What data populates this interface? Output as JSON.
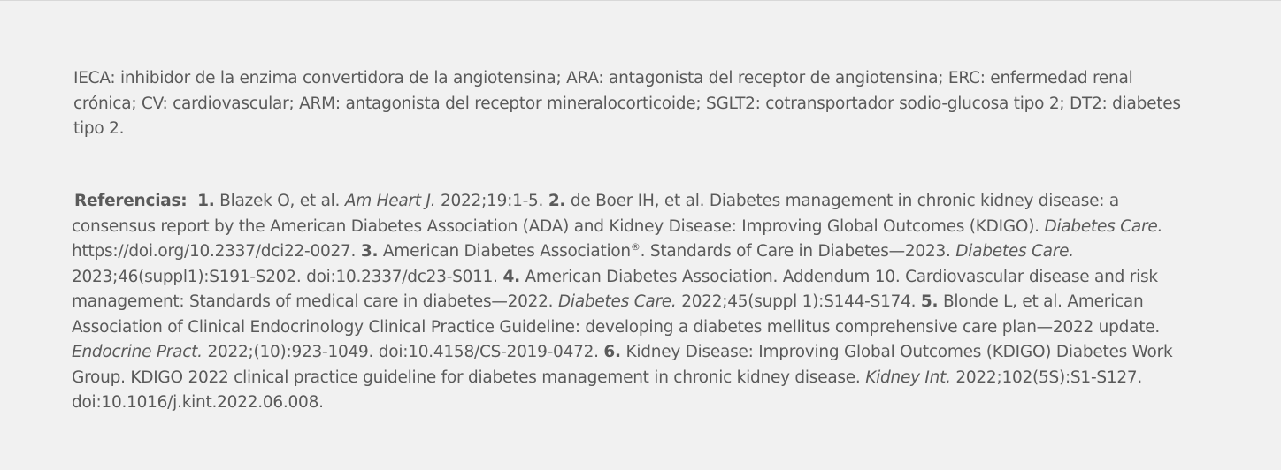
{
  "abbreviations": "IECA: inhibidor de la enzima convertidora de la angiotensina; ARA: antagonista del receptor de angiotensina; ERC: enfermedad renal crónica; CV: cardiovascular; ARM: antagonista del receptor mineralocorticoide; SGLT2: cotransportador sodio-glucosa tipo 2; DT2: diabetes tipo 2.",
  "references": {
    "heading": "Referencias:",
    "items": [
      {
        "num": "1.",
        "pre": "Blazek O, et al.",
        "journal": "Am Heart J.",
        "post": "2022;19:1-5."
      },
      {
        "num": "2.",
        "pre": "de Boer IH, et al. Diabetes management in chronic kidney disease: a consensus report by the American Diabetes Association (ADA) and Kidney Disease: Improving Global Outcomes (KDIGO).",
        "journal": "Diabetes Care.",
        "post": "https://doi.org/10.2337/dci22-0027."
      },
      {
        "num": "3.",
        "pre": "American Diabetes Association",
        "sup": "®",
        "pre2": ". Standards of Care in Diabetes—2023.",
        "journal": "Diabetes Care.",
        "post": "2023;46(suppl1):S191-S202. doi:10.2337/dc23-S011."
      },
      {
        "num": "4.",
        "pre": "American Diabetes Association. Addendum 10. Cardiovascular disease and risk management: Standards of medical care in diabetes—2022.",
        "journal": "Diabetes Care.",
        "post": "2022;45(suppl 1):S144-S174."
      },
      {
        "num": "5.",
        "pre": "Blonde L, et al. American Association of Clinical Endocrinology Clinical Practice Guideline: developing a diabetes mellitus comprehensive care plan—2022 update.",
        "journal": "Endocrine Pract.",
        "post": "2022;(10):923-1049. doi:10.4158/CS-2019-0472."
      },
      {
        "num": "6.",
        "pre": "Kidney Disease: Improving Global Outcomes (KDIGO) Diabetes Work Group. KDIGO 2022 clinical practice guideline for diabetes management in chronic kidney disease.",
        "journal": "Kidney Int.",
        "post": "2022;102(5S):S1-S127. doi:10.1016/j.kint.2022.06.008."
      }
    ]
  }
}
